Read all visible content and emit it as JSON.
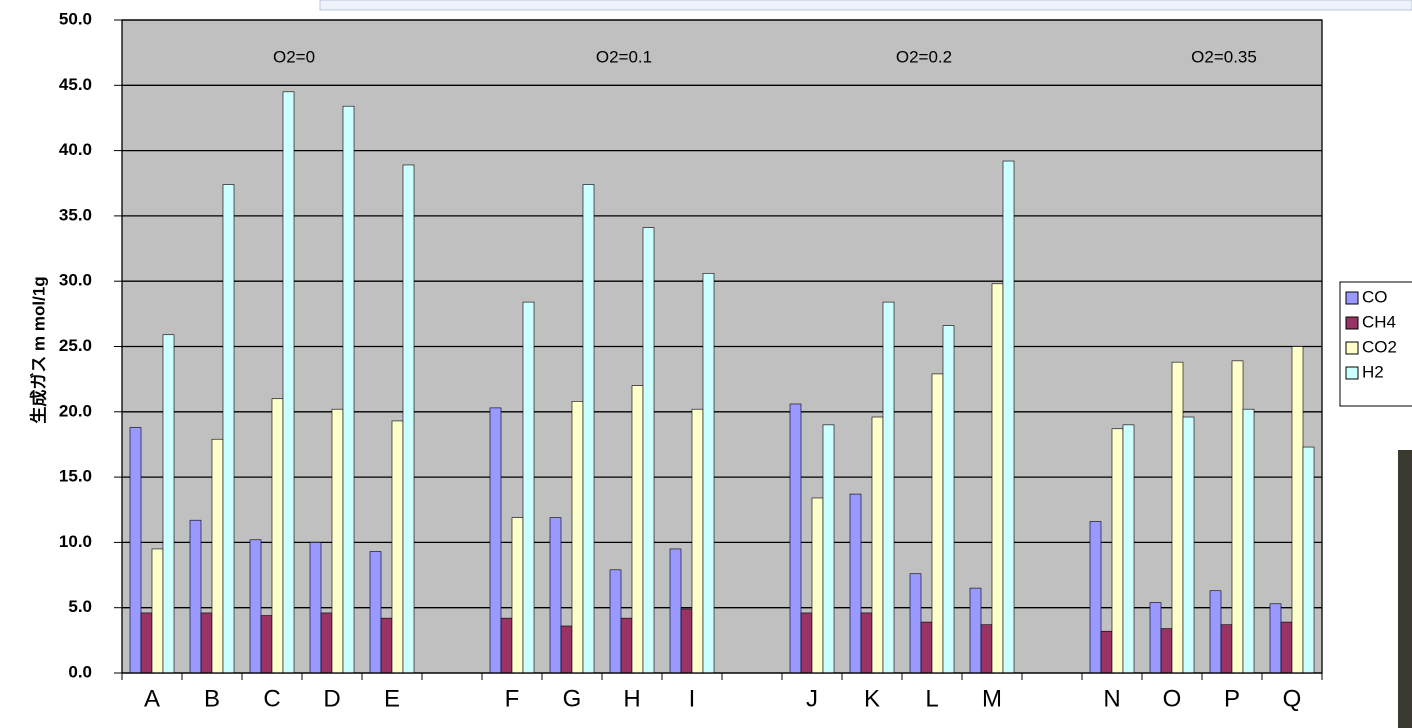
{
  "chart_data": {
    "type": "bar",
    "y_label": "生成ガス m mol/1g",
    "annotations": [
      "O2=0",
      "O2=0.1",
      "O2=0.2",
      "O2=0.35"
    ],
    "categories": [
      "A",
      "B",
      "C",
      "D",
      "E",
      null,
      "F",
      "G",
      "H",
      "I",
      null,
      "J",
      "K",
      "L",
      "M",
      null,
      "N",
      "O",
      "P",
      "Q"
    ],
    "series": [
      {
        "name": "CO",
        "color": "#9999ff",
        "values": [
          18.8,
          11.7,
          10.2,
          10.0,
          9.3,
          null,
          20.3,
          11.9,
          7.9,
          9.5,
          null,
          20.6,
          13.7,
          7.6,
          6.5,
          null,
          11.6,
          5.4,
          6.3,
          5.3
        ]
      },
      {
        "name": "CH4",
        "color": "#993366",
        "values": [
          4.6,
          4.6,
          4.4,
          4.6,
          4.2,
          null,
          4.2,
          3.6,
          4.2,
          4.9,
          null,
          4.6,
          4.6,
          3.9,
          3.7,
          null,
          3.2,
          3.4,
          3.7,
          3.9
        ]
      },
      {
        "name": "CO2",
        "color": "#ffffcc",
        "values": [
          9.5,
          17.9,
          21.0,
          20.2,
          19.3,
          null,
          11.9,
          20.8,
          22.0,
          20.2,
          null,
          13.4,
          19.6,
          22.9,
          29.8,
          null,
          18.7,
          23.8,
          23.9,
          25.0
        ]
      },
      {
        "name": "H2",
        "color": "#ccffff",
        "values": [
          25.9,
          37.4,
          44.5,
          43.4,
          38.9,
          null,
          28.4,
          37.4,
          34.1,
          30.6,
          null,
          19.0,
          28.4,
          26.6,
          39.2,
          null,
          19.0,
          19.6,
          20.2,
          17.3
        ]
      }
    ],
    "ylim": [
      0,
      50
    ],
    "yticks": [
      {
        "value": 0,
        "label": "0.0"
      },
      {
        "value": 5,
        "label": "5.0"
      },
      {
        "value": 10,
        "label": "10.0"
      },
      {
        "value": 15,
        "label": "15.0"
      },
      {
        "value": 20,
        "label": "20.0"
      },
      {
        "value": 25,
        "label": "25.0"
      },
      {
        "value": 30,
        "label": "30.0"
      },
      {
        "value": 35,
        "label": "35.0"
      },
      {
        "value": 40,
        "label": "40.0"
      },
      {
        "value": 45,
        "label": "45.0"
      },
      {
        "value": 50,
        "label": "50.0"
      }
    ],
    "grid": true,
    "background": "#c0c0c0",
    "legend": "right"
  }
}
